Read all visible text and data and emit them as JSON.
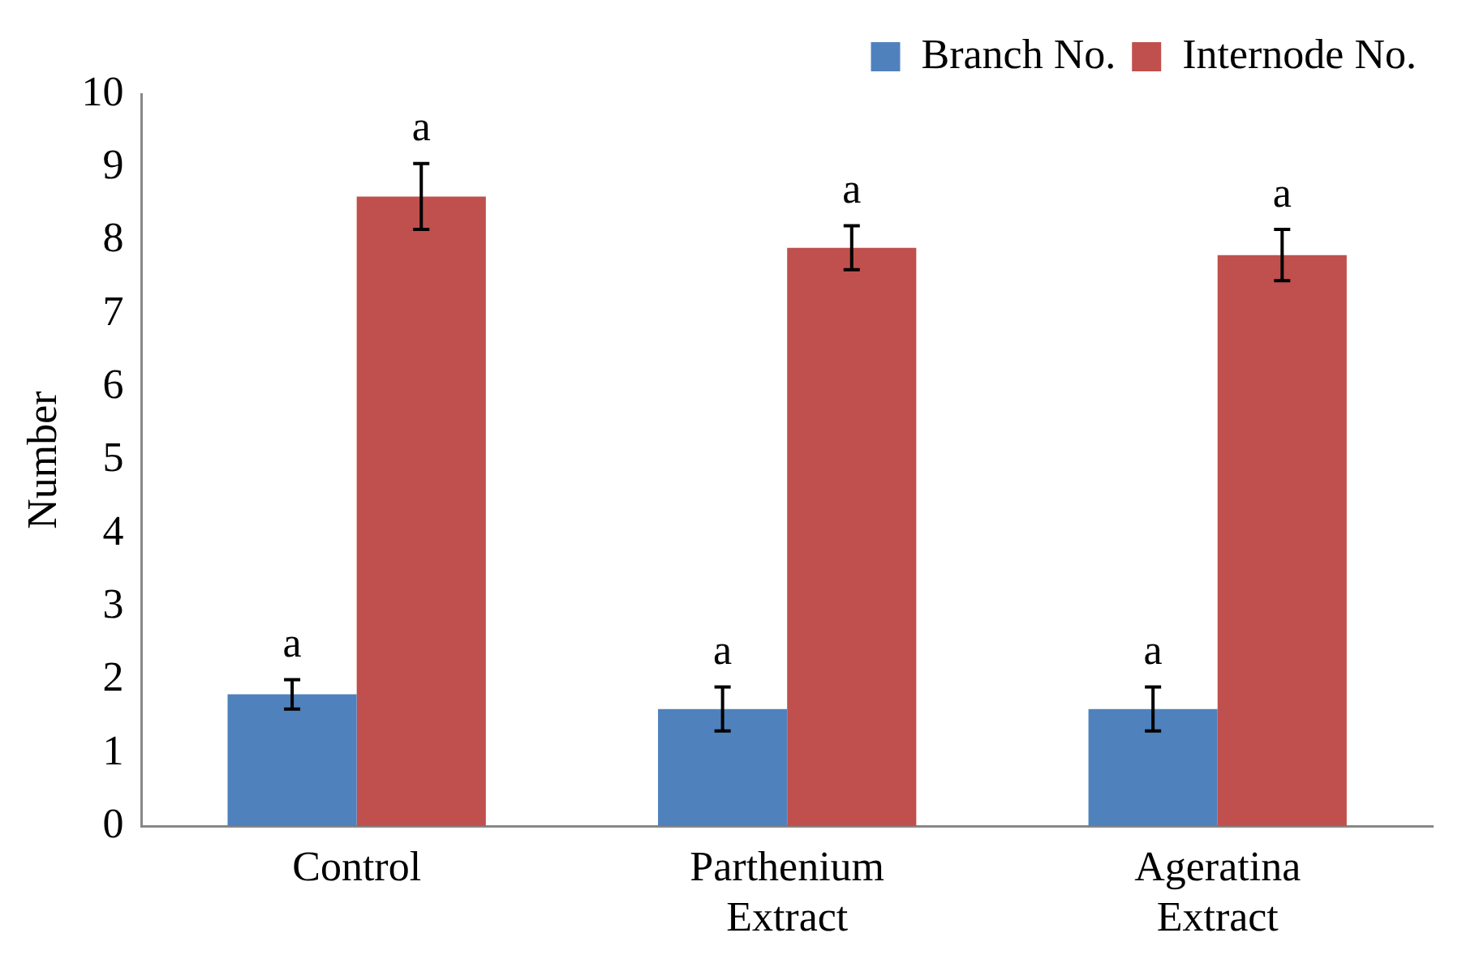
{
  "chart_data": {
    "type": "bar",
    "ylabel": "Number",
    "categories": [
      "Control",
      "Parthenium Extract",
      "Ageratina Extract"
    ],
    "series": [
      {
        "name": "Branch No.",
        "color": "#4f81bd",
        "values": [
          1.8,
          1.6,
          1.6
        ],
        "errors": [
          0.2,
          0.3,
          0.3
        ]
      },
      {
        "name": "Internode No.",
        "color": "#c0504d",
        "values": [
          8.6,
          7.9,
          7.8
        ],
        "errors": [
          0.45,
          0.3,
          0.35
        ]
      }
    ],
    "ylim": [
      0,
      10
    ],
    "yticks": [
      0,
      1,
      2,
      3,
      4,
      5,
      6,
      7,
      8,
      9,
      10
    ],
    "grid": false,
    "legend": "top right",
    "annotations": [
      {
        "text": "a",
        "x": "Control",
        "y": 1.8
      },
      {
        "text": "a",
        "x": "Control",
        "y": 8.6
      },
      {
        "text": "a",
        "x": "Parthenium Extract",
        "y": 1.6
      },
      {
        "text": "a",
        "x": "Parthenium Extract",
        "y": 7.9
      },
      {
        "text": "a",
        "x": "Ageratina Extract",
        "y": 1.6
      },
      {
        "text": "a",
        "x": "Ageratina Extract",
        "y": 7.8
      }
    ]
  }
}
